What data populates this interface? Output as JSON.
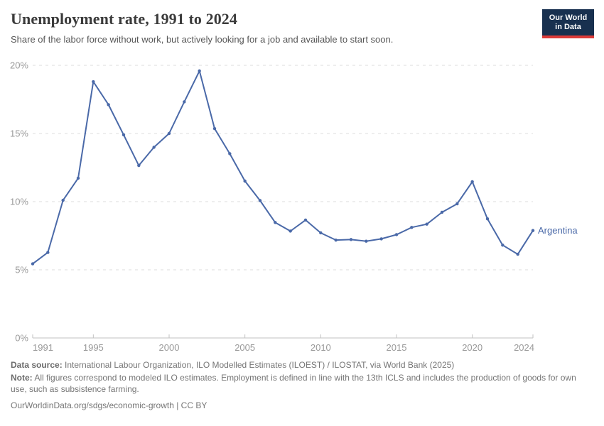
{
  "header": {
    "title": "Unemployment rate, 1991 to 2024",
    "subtitle": "Share of the labor force without work, but actively looking for a job and available to start soon.",
    "logo": {
      "line1": "Our World",
      "line2": "in Data",
      "bg_color": "#18304f",
      "accent_color": "#dc3b39"
    }
  },
  "chart_data": {
    "type": "line",
    "title": "Unemployment rate, 1991 to 2024",
    "xlabel": "",
    "ylabel": "",
    "xlim": [
      1991,
      2024
    ],
    "ylim": [
      0,
      20
    ],
    "x_ticks": [
      1991,
      1995,
      2000,
      2005,
      2010,
      2015,
      2020,
      2024
    ],
    "y_ticks": [
      0,
      5,
      10,
      15,
      20
    ],
    "y_tick_suffix": "%",
    "grid": "horizontal-dashed",
    "legend_position": "end-of-line-label",
    "colors": {
      "grid": "#dedede",
      "axis": "#c2c2c2",
      "tick_text": "#999999"
    },
    "series": [
      {
        "name": "Argentina",
        "color": "#4a69a8",
        "x": [
          1991,
          1992,
          1993,
          1994,
          1995,
          1996,
          1997,
          1998,
          1999,
          2000,
          2001,
          2002,
          2003,
          2004,
          2005,
          2006,
          2007,
          2008,
          2009,
          2010,
          2011,
          2012,
          2013,
          2014,
          2015,
          2016,
          2017,
          2018,
          2019,
          2020,
          2021,
          2022,
          2023,
          2024
        ],
        "values": [
          5.44,
          6.27,
          10.1,
          11.72,
          18.8,
          17.11,
          14.9,
          12.65,
          13.99,
          15.0,
          17.32,
          19.59,
          15.36,
          13.52,
          11.51,
          10.08,
          8.47,
          7.84,
          8.65,
          7.71,
          7.18,
          7.22,
          7.1,
          7.27,
          7.58,
          8.11,
          8.35,
          9.22,
          9.84,
          11.46,
          8.74,
          6.81,
          6.14,
          7.88
        ]
      }
    ]
  },
  "footer": {
    "datasource_label": "Data source:",
    "datasource_text": " International Labour Organization, ILO Modelled Estimates (ILOEST) / ILOSTAT, via World Bank (2025)",
    "note_label": "Note:",
    "note_text": " All figures correspond to modeled ILO estimates. Employment is defined in line with the 13th ICLS and includes the production of goods for own use, such as subsistence farming.",
    "url": "OurWorldinData.org/sdgs/economic-growth",
    "separator": " | ",
    "license": "CC BY"
  }
}
